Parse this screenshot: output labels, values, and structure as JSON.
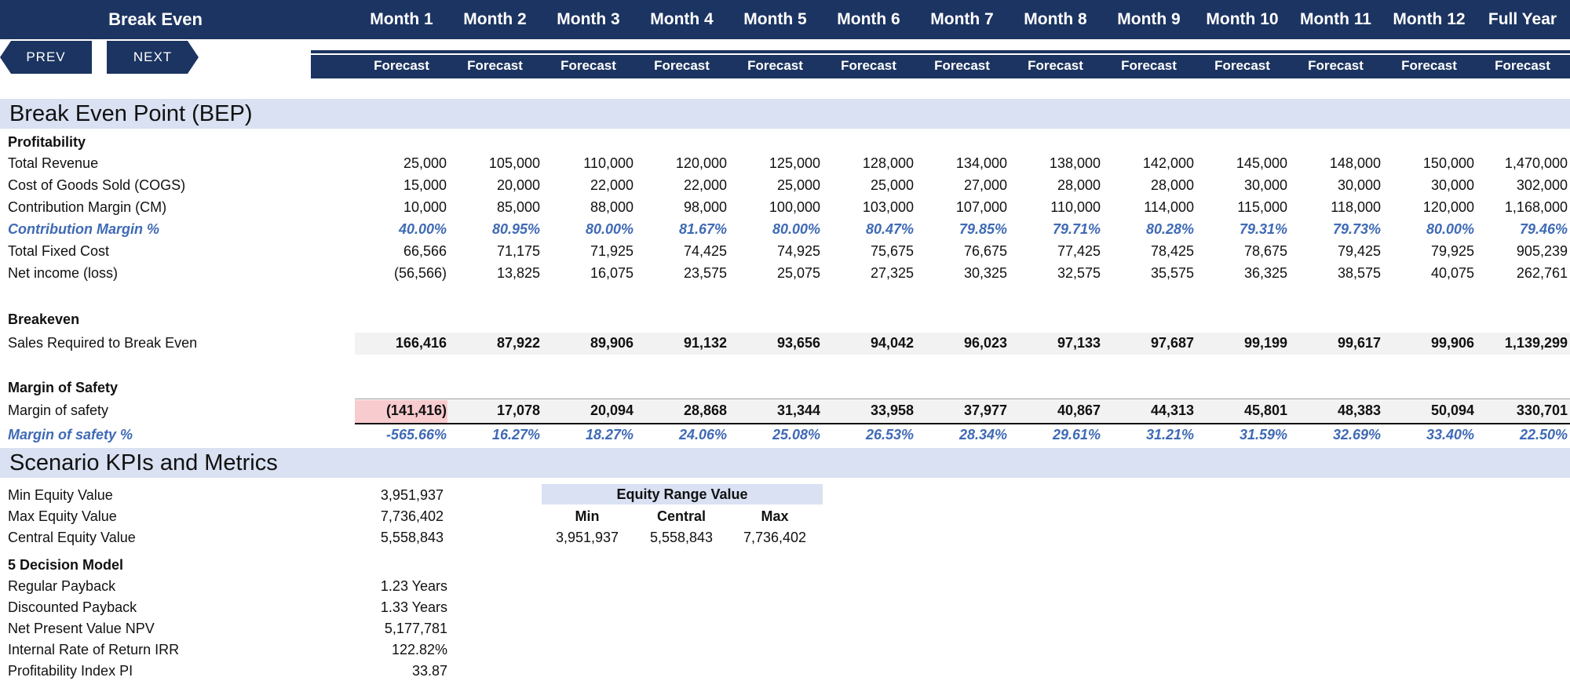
{
  "header": {
    "title": "Break Even",
    "months": [
      "Month 1",
      "Month 2",
      "Month 3",
      "Month 4",
      "Month 5",
      "Month 6",
      "Month 7",
      "Month 8",
      "Month 9",
      "Month 10",
      "Month 11",
      "Month 12",
      "Full Year"
    ],
    "forecast_label": "Forecast",
    "prev_label": "PREV",
    "next_label": "NEXT",
    "colors": {
      "header_bg": "#1c3461",
      "section_bg": "#d9e1f2",
      "accent_text": "#3f6ab5",
      "negative_fill": "#f8cbcf"
    }
  },
  "bep": {
    "section_title": "Break Even Point (BEP)",
    "profitability_label": "Profitability",
    "rows": [
      {
        "label": "Total Revenue",
        "style": "normal",
        "values": [
          "25,000",
          "105,000",
          "110,000",
          "120,000",
          "125,000",
          "128,000",
          "134,000",
          "138,000",
          "142,000",
          "145,000",
          "148,000",
          "150,000",
          "1,470,000"
        ]
      },
      {
        "label": "Cost of Goods Sold (COGS)",
        "style": "normal",
        "values": [
          "15,000",
          "20,000",
          "22,000",
          "22,000",
          "25,000",
          "25,000",
          "27,000",
          "28,000",
          "28,000",
          "30,000",
          "30,000",
          "30,000",
          "302,000"
        ]
      },
      {
        "label": "Contribution Margin (CM)",
        "style": "normal",
        "values": [
          "10,000",
          "85,000",
          "88,000",
          "98,000",
          "100,000",
          "103,000",
          "107,000",
          "110,000",
          "114,000",
          "115,000",
          "118,000",
          "120,000",
          "1,168,000"
        ]
      },
      {
        "label": "Contribution Margin %",
        "style": "accent",
        "values": [
          "40.00%",
          "80.95%",
          "80.00%",
          "81.67%",
          "80.00%",
          "80.47%",
          "79.85%",
          "79.71%",
          "80.28%",
          "79.31%",
          "79.73%",
          "80.00%",
          "79.46%"
        ]
      },
      {
        "label": "Total Fixed Cost",
        "style": "normal",
        "values": [
          "66,566",
          "71,175",
          "71,925",
          "74,425",
          "74,925",
          "75,675",
          "76,675",
          "77,425",
          "78,425",
          "78,675",
          "79,425",
          "79,925",
          "905,239"
        ]
      },
      {
        "label": "Net income (loss)",
        "style": "normal",
        "values": [
          "(56,566)",
          "13,825",
          "16,075",
          "23,575",
          "25,075",
          "27,325",
          "30,325",
          "32,575",
          "35,575",
          "36,325",
          "38,575",
          "40,075",
          "262,761"
        ]
      }
    ],
    "breakeven_label": "Breakeven",
    "sales_required": {
      "label": "Sales Required to Break Even",
      "values": [
        "166,416",
        "87,922",
        "89,906",
        "91,132",
        "93,656",
        "94,042",
        "96,023",
        "97,133",
        "97,687",
        "99,199",
        "99,617",
        "99,906",
        "1,139,299"
      ]
    },
    "mos_label": "Margin of Safety",
    "margin_of_safety": {
      "label": "Margin of safety",
      "values": [
        "(141,416)",
        "17,078",
        "20,094",
        "28,868",
        "31,344",
        "33,958",
        "37,977",
        "40,867",
        "44,313",
        "45,801",
        "48,383",
        "50,094",
        "330,701"
      ]
    },
    "margin_of_safety_pct": {
      "label": "Margin of safety %",
      "values": [
        "-565.66%",
        "16.27%",
        "18.27%",
        "24.06%",
        "25.08%",
        "26.53%",
        "28.34%",
        "29.61%",
        "31.21%",
        "31.59%",
        "32.69%",
        "33.40%",
        "22.50%"
      ]
    }
  },
  "kpi": {
    "section_title": "Scenario KPIs and Metrics",
    "equity": [
      {
        "label": "Min Equity Value",
        "value": "3,951,937"
      },
      {
        "label": "Max Equity Value",
        "value": "7,736,402"
      },
      {
        "label": "Central Equity Value",
        "value": "5,558,843"
      }
    ],
    "decision_label": "5 Decision Model",
    "decision": [
      {
        "label": "Regular Payback",
        "value": "1.23 Years"
      },
      {
        "label": "Discounted Payback",
        "value": "1.33 Years"
      },
      {
        "label": "Net Present Value NPV",
        "value": "5,177,781"
      },
      {
        "label": "Internal Rate of Return IRR",
        "value": "122.82%"
      },
      {
        "label": "Profitability Index PI",
        "value": "33.87"
      }
    ],
    "range": {
      "title": "Equity Range Value",
      "headers": [
        "Min",
        "Central",
        "Max"
      ],
      "values": [
        "3,951,937",
        "5,558,843",
        "7,736,402"
      ]
    }
  }
}
